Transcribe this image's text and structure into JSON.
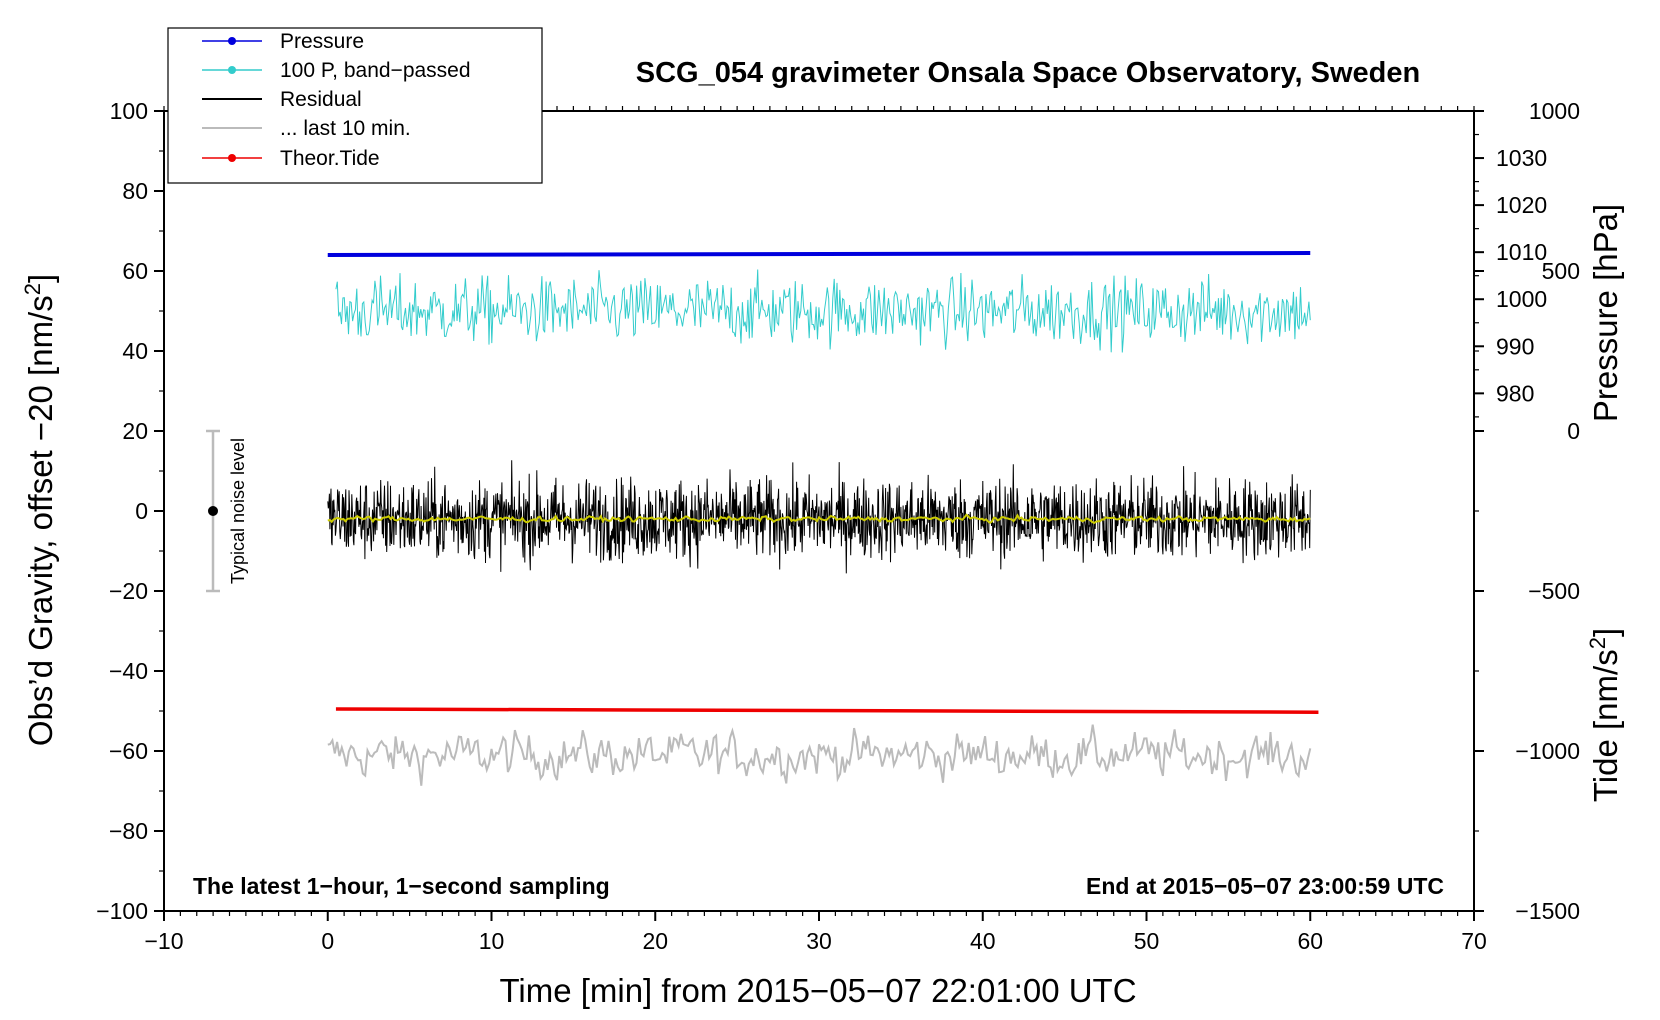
{
  "chart_data": {
    "type": "line",
    "title": "SCG_054 gravimeter Onsala Space Observatory, Sweden",
    "xlabel": "Time [min] from 2015−05−07 22:01:00 UTC",
    "ylabel_left": "Obs’d Gravity, offset −20 [nm/s",
    "ylabel_left_sup": "2",
    "ylabel_left_end": "]",
    "ylabel_right_pressure": "Pressure [hPa]",
    "ylabel_right_tide": "Tide [nm/s",
    "ylabel_right_tide_sup": "2",
    "ylabel_right_tide_end": "]",
    "xlim": [
      -10,
      70
    ],
    "ylim": [
      -100,
      100
    ],
    "x_ticks": [
      -10,
      0,
      10,
      20,
      30,
      40,
      50,
      60,
      70
    ],
    "x_tick_labels": [
      "−10",
      "0",
      "10",
      "20",
      "30",
      "40",
      "50",
      "60",
      "70"
    ],
    "y_ticks": [
      -100,
      -80,
      -60,
      -40,
      -20,
      0,
      20,
      40,
      60,
      80,
      100
    ],
    "y_tick_labels": [
      "−100",
      "−80",
      "−60",
      "−40",
      "−20",
      "0",
      "20",
      "40",
      "60",
      "80",
      "100"
    ],
    "pressure_ticks": [
      980,
      990,
      1000,
      1010,
      1020,
      1030
    ],
    "pressure_tick_labels": [
      "980",
      "990",
      "1000",
      "1010",
      "1020",
      "1030"
    ],
    "pressure_axis_range_hPa": [
      870,
      1040
    ],
    "tide_ticks": [
      -1500,
      -1000,
      -500,
      0,
      500,
      1000
    ],
    "tide_tick_labels": [
      "−1500",
      "−1000",
      "−500",
      "0",
      "500",
      "1000"
    ],
    "tide_axis_range": [
      -1500,
      1000
    ],
    "legend": {
      "position": "top-left",
      "entries": [
        {
          "label": "Pressure",
          "color": "#0000dd",
          "marker": true
        },
        {
          "label": "100 P, band−passed",
          "color": "#33cccc",
          "marker": true
        },
        {
          "label": "Residual",
          "color": "#000000",
          "marker": false
        },
        {
          "label": "... last 10 min.",
          "color": "#bbbbbb",
          "marker": false
        },
        {
          "label": "Theor.Tide",
          "color": "#ee0000",
          "marker": true
        }
      ]
    },
    "series": [
      {
        "name": "Pressure",
        "color": "#0000dd",
        "x_range": [
          0,
          60
        ],
        "y_start": 64,
        "y_end": 64.5,
        "noise_amplitude": 0
      },
      {
        "name": "100 P, band−passed",
        "color": "#33cccc",
        "x_range": [
          0.5,
          60
        ],
        "y_center": 50,
        "noise_amplitude": 6
      },
      {
        "name": "Residual",
        "color": "#000000",
        "x_range": [
          0,
          60
        ],
        "y_center": -2,
        "noise_amplitude": 6
      },
      {
        "name": "Residual (smoothed)",
        "color": "#cccc00",
        "x_range": [
          0,
          60
        ],
        "y_center": -2,
        "noise_amplitude": 1
      },
      {
        "name": "... last 10 min.",
        "color": "#bbbbbb",
        "x_range": [
          0,
          60
        ],
        "y_center": -61,
        "noise_amplitude": 4
      },
      {
        "name": "Theor.Tide",
        "color": "#ee0000",
        "x_range": [
          0.5,
          60.5
        ],
        "y_start": -49.5,
        "y_end": -50.3,
        "noise_amplitude": 0
      }
    ],
    "noise_indicator": {
      "label": "Typical noise level",
      "x": -7,
      "y_center": 0,
      "y_range": [
        -20,
        20
      ]
    },
    "annotation_left": "The latest 1−hour, 1−second sampling",
    "annotation_right": "End at 2015−05−07 23:00:59 UTC"
  }
}
